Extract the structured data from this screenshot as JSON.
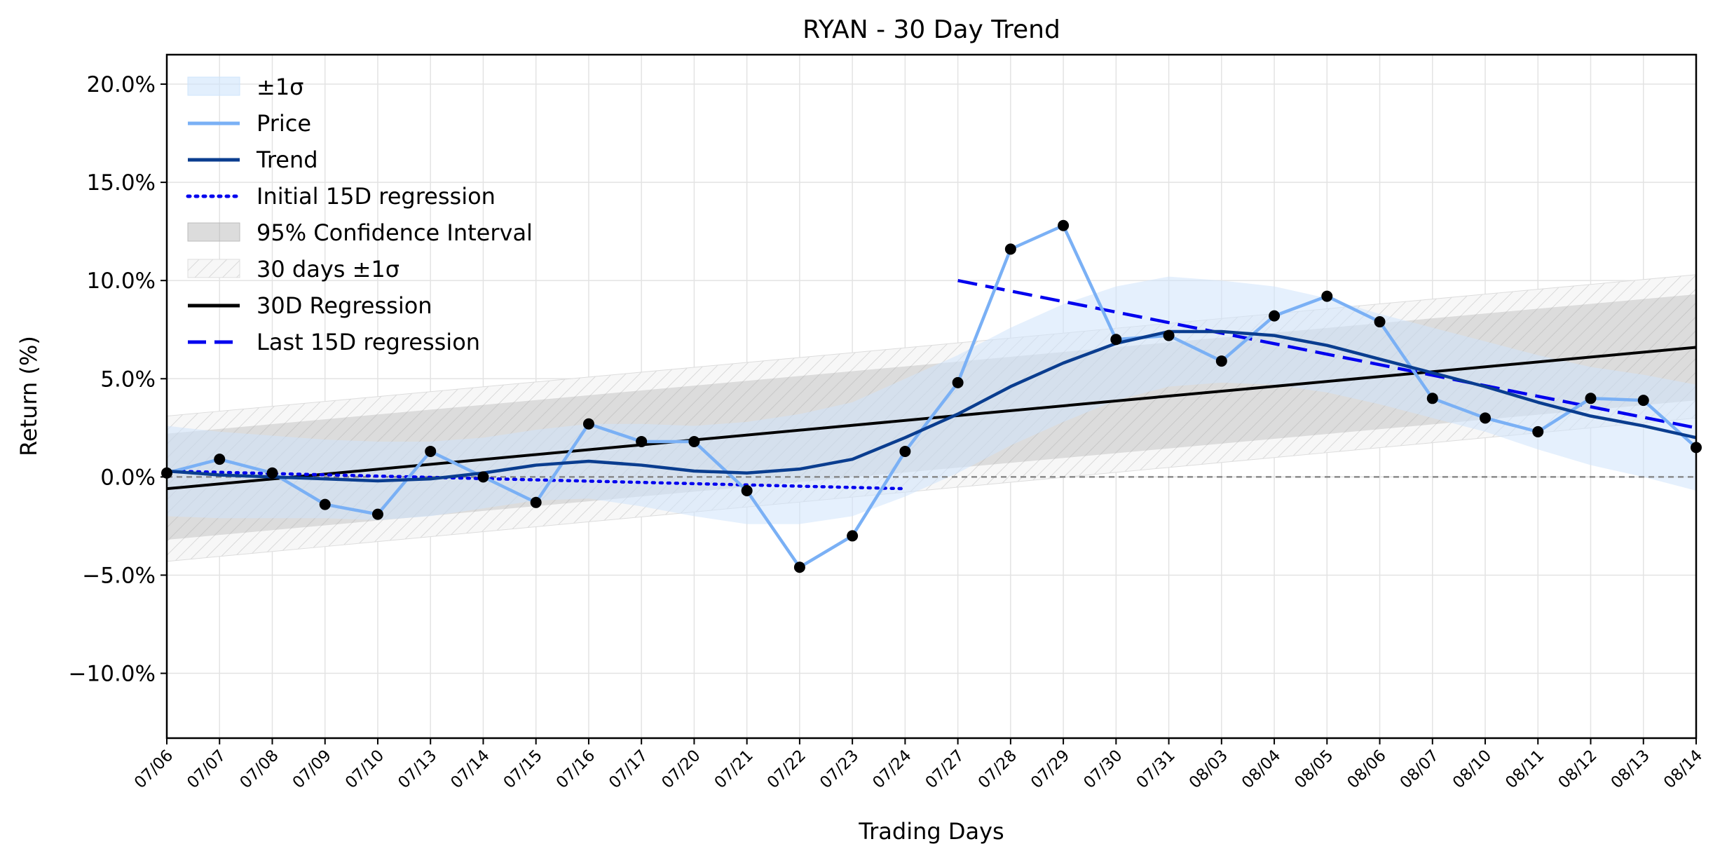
{
  "chart_data": {
    "type": "line",
    "title": "RYAN - 30 Day Trend",
    "xlabel": "Trading Days",
    "ylabel": "Return (%)",
    "categories": [
      "07/06",
      "07/07",
      "07/08",
      "07/09",
      "07/10",
      "07/13",
      "07/14",
      "07/15",
      "07/16",
      "07/17",
      "07/20",
      "07/21",
      "07/22",
      "07/23",
      "07/24",
      "07/27",
      "07/28",
      "07/29",
      "07/30",
      "07/31",
      "08/03",
      "08/04",
      "08/05",
      "08/06",
      "08/07",
      "08/10",
      "08/11",
      "08/12",
      "08/13",
      "08/14"
    ],
    "ylim": [
      -13.3,
      21.5
    ],
    "yticks": [
      -10,
      -5,
      0,
      5,
      10,
      15,
      20
    ],
    "ytick_labels": [
      "−10.0%",
      "−5.0%",
      "0.0%",
      "5.0%",
      "10.0%",
      "15.0%",
      "20.0%"
    ],
    "grid": true,
    "legend_position": "top-left",
    "legend": [
      "±1σ",
      "Price",
      "Trend",
      "Initial 15D regression",
      "95% Confidence Interval",
      "30 days ±1σ",
      "30D Regression",
      "Last 15D regression"
    ],
    "series": [
      {
        "name": "Price",
        "color": "#7ab0f5",
        "values": [
          0.2,
          0.9,
          0.2,
          -1.4,
          -1.9,
          1.3,
          0.0,
          -1.3,
          2.7,
          1.8,
          1.8,
          -0.7,
          -4.6,
          -3.0,
          1.3,
          4.8,
          11.6,
          12.8,
          7.0,
          7.2,
          5.9,
          8.2,
          9.2,
          7.9,
          4.0,
          3.0,
          2.3,
          4.0,
          3.9,
          1.5
        ]
      },
      {
        "name": "Trend",
        "color": "#0a3d8f",
        "values": [
          0.3,
          0.1,
          0.0,
          -0.1,
          -0.2,
          -0.1,
          0.2,
          0.6,
          0.8,
          0.6,
          0.3,
          0.2,
          0.4,
          0.9,
          2.0,
          3.2,
          4.6,
          5.8,
          6.8,
          7.4,
          7.4,
          7.2,
          6.7,
          6.0,
          5.3,
          4.6,
          3.8,
          3.1,
          2.6,
          2.0
        ]
      },
      {
        "name": "30D Regression",
        "color": "#000000",
        "start": -0.6,
        "end": 6.6
      },
      {
        "name": "Initial 15D regression",
        "color": "#0000ee",
        "start": 0.3,
        "end": -0.6,
        "range": [
          0,
          14
        ]
      },
      {
        "name": "Last 15D regression",
        "color": "#0000ee",
        "start": 10.0,
        "end": 2.5,
        "range": [
          15,
          29
        ]
      }
    ],
    "bands": {
      "sigma_halfwidth": [
        2.3,
        2.2,
        2.1,
        2.0,
        2.0,
        1.9,
        1.8,
        1.8,
        1.9,
        2.1,
        2.3,
        2.6,
        2.8,
        2.9,
        3.0,
        3.0,
        3.0,
        3.0,
        2.9,
        2.8,
        2.6,
        2.5,
        2.4,
        2.3,
        2.3,
        2.3,
        2.4,
        2.5,
        2.6,
        2.7
      ],
      "ci95_start": [
        -3.2,
        2.2
      ],
      "ci95_end": [
        3.9,
        9.3
      ],
      "sigma30_start": [
        -4.3,
        3.1
      ],
      "sigma30_end": [
        3.0,
        10.3
      ]
    },
    "zero_line": 0.0
  }
}
